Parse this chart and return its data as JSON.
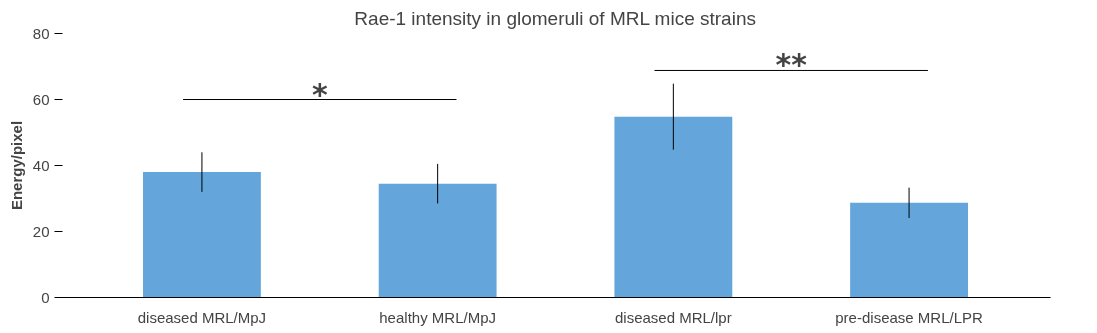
{
  "chart_data": {
    "type": "bar",
    "title": "Rae-1 intensity in glomeruli of MRL mice strains",
    "ylabel": "Energy/pixel",
    "categories": [
      "diseased MRL/MpJ",
      "healthy MRL/MpJ",
      "diseased MRL/lpr",
      "pre-disease MRL/LPR"
    ],
    "values": [
      38,
      34.5,
      54.8,
      28.7
    ],
    "errors": [
      6,
      6,
      10,
      4.6
    ],
    "color": "#64a6dc",
    "ylim": [
      0,
      80
    ],
    "yticks": [
      0,
      20,
      40,
      60,
      80
    ],
    "grid": false,
    "annotations": [
      "*",
      "**"
    ]
  }
}
